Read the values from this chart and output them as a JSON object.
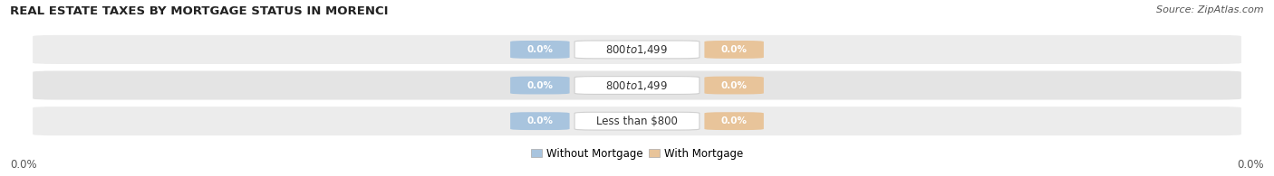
{
  "title": "REAL ESTATE TAXES BY MORTGAGE STATUS IN MORENCI",
  "source": "Source: ZipAtlas.com",
  "categories": [
    "Less than $800",
    "$800 to $1,499",
    "$800 to $1,499"
  ],
  "without_mortgage": [
    0.0,
    0.0,
    0.0
  ],
  "with_mortgage": [
    0.0,
    0.0,
    0.0
  ],
  "without_mortgage_color": "#a8c4de",
  "with_mortgage_color": "#e8c49a",
  "row_bg_color_odd": "#ececec",
  "row_bg_color_even": "#e4e4e4",
  "row_border_color": "#ffffff",
  "x_left_label": "0.0%",
  "x_right_label": "0.0%",
  "legend_without": "Without Mortgage",
  "legend_with": "With Mortgage",
  "title_fontsize": 9.5,
  "source_fontsize": 8,
  "tick_fontsize": 8.5,
  "label_fontsize": 7.5,
  "cat_fontsize": 8.5
}
